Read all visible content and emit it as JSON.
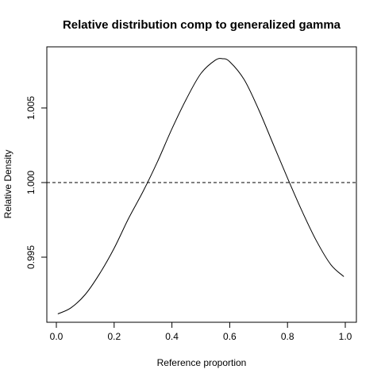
{
  "chart_data": {
    "type": "line",
    "title": "Relative distribution comp to generalized gamma",
    "xlabel": "Reference proportion",
    "ylabel": "Relative Density",
    "xlim": [
      0.0,
      1.0
    ],
    "ylim": [
      0.9908,
      1.0095
    ],
    "x_ticks": [
      0.0,
      0.2,
      0.4,
      0.6,
      0.8,
      1.0
    ],
    "x_tick_labels": [
      "0.0",
      "0.2",
      "0.4",
      "0.6",
      "0.8",
      "1.0"
    ],
    "y_ticks": [
      0.995,
      1.0,
      1.005
    ],
    "y_tick_labels": [
      "0.995",
      "1.000",
      "1.005"
    ],
    "reference_line": {
      "y": 1.0,
      "style": "dashed"
    },
    "grid": false,
    "series": [
      {
        "x": [
          0.005,
          0.05,
          0.1,
          0.15,
          0.2,
          0.25,
          0.3,
          0.35,
          0.4,
          0.45,
          0.5,
          0.55,
          0.575,
          0.6,
          0.65,
          0.7,
          0.75,
          0.8,
          0.85,
          0.9,
          0.95,
          0.995
        ],
        "y": [
          0.9912,
          0.9916,
          0.9925,
          0.9939,
          0.9956,
          0.9976,
          0.9994,
          1.0014,
          1.0036,
          1.0056,
          1.0073,
          1.0082,
          1.0083,
          1.0081,
          1.0069,
          1.0049,
          1.0026,
          1.0003,
          0.9981,
          0.9961,
          0.9945,
          0.9937
        ]
      }
    ]
  }
}
